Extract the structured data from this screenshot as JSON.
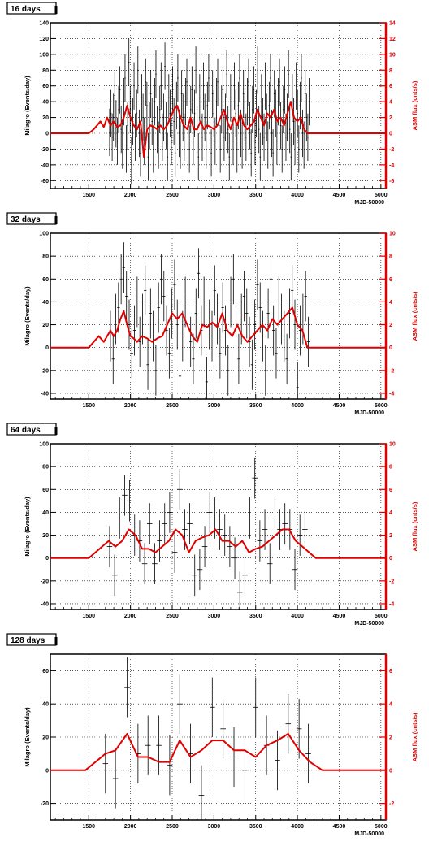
{
  "colors": {
    "milagro": "#000000",
    "asm": "#e00000",
    "grid": "#000000"
  },
  "chart_data": [
    {
      "type": "line",
      "title": "16 days",
      "xlabel": "MJD-50000",
      "ylabel": "Milagro (Events/day)",
      "y2label": "ASM flux (cnts/s)",
      "xlim": [
        1040,
        5060
      ],
      "xticks": [
        "1500",
        "2000",
        "2500",
        "3000",
        "3500",
        "4000",
        "4500",
        "5000"
      ],
      "ylim": [
        -70,
        140
      ],
      "yticks": [
        "-60",
        "-40",
        "-20",
        "0",
        "20",
        "40",
        "60",
        "80",
        "100",
        "120",
        "140"
      ],
      "y2lim": [
        -7,
        14
      ],
      "y2ticks": [
        "-6",
        "-4",
        "-2",
        "0",
        "2",
        "4",
        "6",
        "8",
        "10",
        "12",
        "14"
      ],
      "grid": true,
      "series": [
        {
          "name": "Milagro",
          "kind": "errorbar",
          "x_start": 1750,
          "x_end": 4140,
          "bin": 16,
          "y": [
            1,
            25,
            -5,
            20,
            48,
            12,
            -10,
            30,
            55,
            5,
            -15,
            40,
            70,
            -20,
            10,
            90,
            30,
            -35,
            15,
            60,
            -5,
            25,
            80,
            0,
            -25,
            45,
            20,
            -10,
            65,
            35,
            -30,
            10,
            50,
            15,
            -20,
            40,
            75,
            5,
            -15,
            30,
            60,
            -5,
            20,
            85,
            10,
            -30,
            45,
            25,
            -10,
            55,
            15,
            -25,
            35,
            70,
            0,
            -15,
            50,
            20,
            -5,
            40,
            65,
            10,
            -20,
            30,
            55,
            -10,
            25,
            80,
            5,
            -30,
            45,
            15,
            -5,
            60,
            20,
            -15,
            35,
            70,
            0,
            -25,
            50,
            25,
            -10,
            40,
            65,
            10,
            -20,
            30,
            55,
            -5,
            20,
            75,
            5,
            -30,
            45,
            15,
            -10,
            60,
            25,
            -20,
            35,
            70,
            0,
            -15,
            50,
            20,
            -5,
            40,
            65,
            10,
            -25,
            30,
            55,
            -10,
            25,
            80,
            5,
            -30,
            45,
            15,
            -5,
            60,
            20,
            -15,
            35,
            70,
            0,
            -25,
            50,
            25,
            -10,
            40,
            65,
            10,
            -20,
            30,
            55,
            -5,
            20,
            75,
            5,
            -30,
            45,
            15,
            -10,
            60,
            25,
            -20,
            35,
            70,
            0,
            -15,
            50,
            20,
            -5,
            40
          ],
          "err": 30
        },
        {
          "name": "ASM",
          "kind": "line",
          "x": [
            1040,
            1500,
            1560,
            1600,
            1640,
            1680,
            1720,
            1760,
            1800,
            1840,
            1880,
            1920,
            1960,
            2000,
            2040,
            2080,
            2120,
            2160,
            2200,
            2240,
            2280,
            2320,
            2360,
            2400,
            2440,
            2480,
            2520,
            2560,
            2600,
            2640,
            2680,
            2720,
            2760,
            2800,
            2840,
            2880,
            2920,
            2960,
            3000,
            3040,
            3080,
            3120,
            3160,
            3200,
            3240,
            3280,
            3320,
            3360,
            3400,
            3440,
            3480,
            3520,
            3560,
            3600,
            3640,
            3680,
            3720,
            3760,
            3800,
            3840,
            3880,
            3920,
            3960,
            4000,
            4040,
            4080,
            4120,
            4160,
            4200,
            5060
          ],
          "y": [
            0,
            0,
            0.5,
            1,
            1.5,
            0.8,
            2,
            1,
            1.5,
            0.8,
            1,
            2,
            3.5,
            2,
            1,
            0.5,
            1.5,
            -3,
            0.5,
            1,
            0.8,
            0.5,
            1,
            0.5,
            1,
            2,
            3,
            3.5,
            2,
            1,
            0.5,
            2,
            0.5,
            0.5,
            1.5,
            0.5,
            1,
            0.8,
            0.5,
            1,
            2,
            3,
            1.5,
            0.5,
            2,
            1,
            2.5,
            1,
            0.5,
            1,
            1.5,
            3,
            2,
            1,
            2.5,
            2,
            3,
            1.5,
            2,
            1,
            2.5,
            4,
            2,
            1.5,
            2,
            0.5,
            0,
            0,
            0,
            0
          ]
        }
      ]
    },
    {
      "type": "line",
      "title": "32 days",
      "xlabel": "MJD-50000",
      "ylabel": "Milagro (Events/day)",
      "y2label": "ASM flux (cnts/s)",
      "xlim": [
        1040,
        5060
      ],
      "xticks": [
        "1500",
        "2000",
        "2500",
        "3000",
        "3500",
        "4000",
        "4500",
        "5000"
      ],
      "ylim": [
        -45,
        100
      ],
      "yticks": [
        "-40",
        "-20",
        "0",
        "20",
        "40",
        "60",
        "80",
        "100"
      ],
      "y2lim": [
        -4.5,
        10
      ],
      "y2ticks": [
        "-4",
        "-2",
        "0",
        "2",
        "4",
        "6",
        "8",
        "10"
      ],
      "grid": true,
      "series": [
        {
          "name": "Milagro",
          "kind": "errorbar",
          "x_start": 1760,
          "x_end": 4130,
          "bin": 32,
          "y": [
            10,
            -10,
            25,
            35,
            60,
            70,
            45,
            20,
            -5,
            15,
            40,
            5,
            25,
            50,
            -15,
            30,
            10,
            -20,
            35,
            60,
            45,
            15,
            -5,
            30,
            55,
            20,
            -25,
            10,
            40,
            25,
            5,
            -10,
            30,
            65,
            15,
            40,
            -30,
            20,
            10,
            50,
            25,
            -5,
            35,
            15,
            -20,
            40,
            60,
            10,
            -10,
            25,
            45,
            30,
            5,
            -15,
            20,
            55,
            35,
            10,
            -20,
            30,
            60,
            15,
            -5,
            40,
            25,
            10,
            -10,
            30,
            50,
            20,
            -35,
            15,
            25,
            45,
            5
          ],
          "err": 22
        },
        {
          "name": "ASM",
          "kind": "line",
          "x": [
            1040,
            1500,
            1560,
            1620,
            1680,
            1720,
            1760,
            1800,
            1840,
            1880,
            1920,
            1960,
            2000,
            2040,
            2080,
            2140,
            2200,
            2260,
            2320,
            2380,
            2440,
            2500,
            2560,
            2620,
            2680,
            2740,
            2800,
            2860,
            2920,
            2980,
            3040,
            3100,
            3160,
            3220,
            3280,
            3340,
            3400,
            3460,
            3520,
            3580,
            3640,
            3700,
            3760,
            3820,
            3880,
            3940,
            4000,
            4060,
            4120,
            4200,
            5060
          ],
          "y": [
            0,
            0,
            0.5,
            1,
            0.5,
            1,
            1.5,
            1,
            1.5,
            2.5,
            3.2,
            2,
            1,
            0.8,
            0.5,
            1,
            0.8,
            0.5,
            0.8,
            1,
            2,
            3,
            2.5,
            3,
            2,
            1,
            0.5,
            2,
            1.8,
            2.2,
            1.8,
            3,
            1.5,
            1,
            2,
            1,
            0.5,
            1,
            1.5,
            2,
            1.5,
            2.5,
            2,
            2.5,
            3,
            3.5,
            2,
            1.5,
            0,
            0,
            0
          ]
        }
      ]
    },
    {
      "type": "line",
      "title": "64 days",
      "xlabel": "MJD-50000",
      "ylabel": "Milagro (Events/day)",
      "y2label": "ASM flux (cnts/s)",
      "xlim": [
        1040,
        5060
      ],
      "xticks": [
        "1500",
        "2000",
        "2500",
        "3000",
        "3500",
        "4000",
        "4500",
        "5000"
      ],
      "ylim": [
        -45,
        100
      ],
      "yticks": [
        "-40",
        "-20",
        "0",
        "20",
        "40",
        "60",
        "80",
        "100"
      ],
      "y2lim": [
        -4.5,
        10
      ],
      "y2ticks": [
        "-4",
        "-2",
        "0",
        "2",
        "4",
        "6",
        "8",
        "10"
      ],
      "grid": true,
      "series": [
        {
          "name": "Milagro",
          "kind": "errorbar",
          "x": [
            1750,
            1810,
            1870,
            1930,
            1990,
            2050,
            2110,
            2170,
            2230,
            2290,
            2350,
            2410,
            2470,
            2530,
            2590,
            2650,
            2710,
            2770,
            2830,
            2890,
            2950,
            3010,
            3070,
            3130,
            3190,
            3250,
            3310,
            3370,
            3430,
            3490,
            3550,
            3610,
            3670,
            3730,
            3790,
            3850,
            3910,
            3970,
            4030,
            4090
          ],
          "y": [
            10,
            -15,
            35,
            55,
            50,
            20,
            15,
            -5,
            30,
            -5,
            15,
            30,
            40,
            5,
            60,
            25,
            30,
            -15,
            -10,
            10,
            40,
            35,
            25,
            20,
            10,
            0,
            -30,
            -15,
            35,
            70,
            15,
            25,
            -5,
            35,
            25,
            30,
            25,
            -10,
            20,
            25
          ],
          "err": 18
        },
        {
          "name": "ASM",
          "kind": "line",
          "x": [
            1040,
            1500,
            1580,
            1660,
            1740,
            1820,
            1900,
            1980,
            2060,
            2140,
            2220,
            2300,
            2380,
            2460,
            2540,
            2620,
            2700,
            2780,
            2860,
            2940,
            3020,
            3100,
            3180,
            3260,
            3340,
            3420,
            3500,
            3580,
            3660,
            3740,
            3820,
            3900,
            3980,
            4060,
            4140,
            4220,
            5060
          ],
          "y": [
            0,
            0,
            0.5,
            1,
            1.5,
            1,
            1.5,
            2.5,
            2,
            0.8,
            0.8,
            0.5,
            1,
            1.5,
            2.5,
            2,
            0.5,
            1.5,
            1.8,
            2,
            2.5,
            1.5,
            1.5,
            1,
            1.5,
            0.5,
            0.8,
            1,
            1.5,
            2,
            2.5,
            2.5,
            1.5,
            1,
            0.5,
            0,
            0
          ]
        }
      ]
    },
    {
      "type": "line",
      "title": "128 days",
      "xlabel": "MJD-50000",
      "ylabel": "Milagro (Events/day)",
      "y2label": "ASM flux (cnts/s)",
      "xlim": [
        1040,
        5060
      ],
      "xticks": [
        "1500",
        "2000",
        "2500",
        "3000",
        "3500",
        "4000",
        "4500",
        "5000"
      ],
      "ylim": [
        -30,
        70
      ],
      "yticks": [
        "-20",
        "0",
        "20",
        "40",
        "60"
      ],
      "y2lim": [
        -3,
        7
      ],
      "y2ticks": [
        "-2",
        "0",
        "2",
        "4",
        "6"
      ],
      "grid": true,
      "series": [
        {
          "name": "Milagro",
          "kind": "errorbar",
          "x": [
            1700,
            1820,
            1960,
            2090,
            2210,
            2340,
            2470,
            2590,
            2720,
            2850,
            2980,
            3110,
            3240,
            3370,
            3500,
            3630,
            3760,
            3890,
            4020,
            4130
          ],
          "y": [
            4,
            -5,
            50,
            10,
            15,
            15,
            3,
            40,
            10,
            -15,
            38,
            25,
            8,
            0,
            38,
            15,
            6,
            28,
            25,
            10
          ],
          "err": 18
        },
        {
          "name": "ASM",
          "kind": "line",
          "x": [
            1040,
            1460,
            1580,
            1700,
            1820,
            1960,
            2090,
            2210,
            2340,
            2470,
            2590,
            2720,
            2850,
            2980,
            3110,
            3240,
            3370,
            3500,
            3630,
            3760,
            3890,
            4020,
            4150,
            4300,
            5060
          ],
          "y": [
            0,
            0,
            0.5,
            1,
            1.2,
            2.2,
            0.8,
            0.8,
            0.5,
            0.5,
            1.8,
            0.8,
            1.2,
            1.8,
            1.8,
            1.2,
            1.2,
            0.8,
            1.5,
            1.8,
            2.2,
            1.2,
            0.5,
            0,
            0
          ]
        }
      ]
    }
  ]
}
